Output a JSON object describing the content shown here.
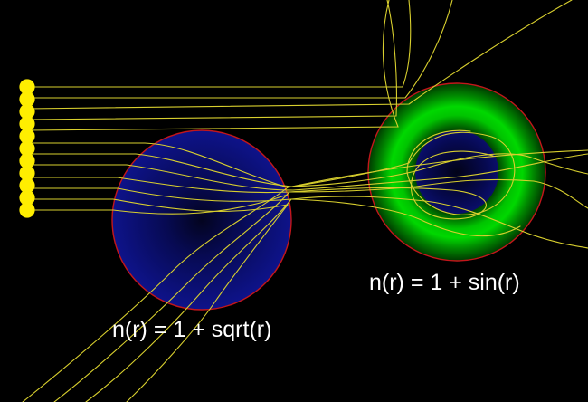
{
  "lens_left": {
    "label": "n(r) = 1 + sqrt(r)",
    "fill": "#0b0f78",
    "outline": "#c3161b"
  },
  "lens_right": {
    "label": "n(r) = 1 + sin(r)",
    "ring_colors": [
      "#00d000",
      "#008a00",
      "#004800"
    ],
    "core_fill": "#06094f",
    "outline": "#c3161b"
  },
  "light_source": {
    "emitter_count": 11,
    "color": "#ffee00"
  },
  "ray_color": "#d8cf2e",
  "background": "#000000"
}
